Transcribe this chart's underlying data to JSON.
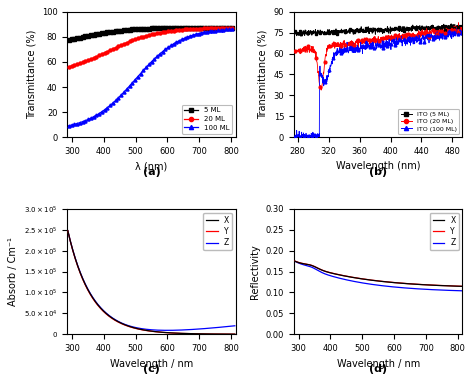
{
  "panel_a": {
    "xlabel": "λ (nm)",
    "ylabel": "Transmittance (%)",
    "xlim": [
      285,
      815
    ],
    "ylim": [
      0,
      100
    ],
    "xticks": [
      300,
      400,
      500,
      600,
      700,
      800
    ],
    "yticks": [
      0,
      20,
      40,
      60,
      80,
      100
    ],
    "label": "(a)",
    "legend": [
      "5 ML",
      "20 ML",
      "100 ML"
    ],
    "colors": [
      "black",
      "red",
      "blue"
    ],
    "legend_edge_colors": [
      "red",
      "red",
      "blue"
    ]
  },
  "panel_b": {
    "xlabel": "Wavelength (nm)",
    "ylabel": "Transmittance (%)",
    "xlim": [
      275,
      493
    ],
    "ylim": [
      0,
      90
    ],
    "xticks": [
      280,
      320,
      360,
      400,
      440,
      480
    ],
    "yticks": [
      0,
      15,
      30,
      45,
      60,
      75,
      90
    ],
    "label": "(b)",
    "legend": [
      "ITO (5 ML)",
      "ITO (20 ML)",
      "ITO (100 ML)"
    ],
    "colors": [
      "black",
      "red",
      "blue"
    ]
  },
  "panel_c": {
    "xlabel": "Wavelength / nm",
    "ylabel": "Absorb / Cm⁻¹",
    "xlim": [
      285,
      815
    ],
    "ylim": [
      0,
      300000.0
    ],
    "yticks": [
      0,
      50000.0,
      100000.0,
      150000.0,
      200000.0,
      250000.0,
      300000.0
    ],
    "ytick_labels": [
      "0",
      "5.0×10⁴",
      "1.0×10⁵",
      "1.5×10⁵",
      "2.0×10⁵",
      "2.5×10⁵",
      "3.0×10⁵"
    ],
    "label": "(c)",
    "legend": [
      "X",
      "Y",
      "Z"
    ],
    "colors": [
      "black",
      "red",
      "blue"
    ]
  },
  "panel_d": {
    "xlabel": "Wavelength / nm",
    "ylabel": "Reflectivity",
    "xlim": [
      285,
      815
    ],
    "ylim": [
      0.0,
      0.3
    ],
    "yticks": [
      0.0,
      0.05,
      0.1,
      0.15,
      0.2,
      0.25,
      0.3
    ],
    "label": "(d)",
    "legend": [
      "X",
      "Y",
      "Z"
    ],
    "colors": [
      "black",
      "red",
      "blue"
    ]
  }
}
